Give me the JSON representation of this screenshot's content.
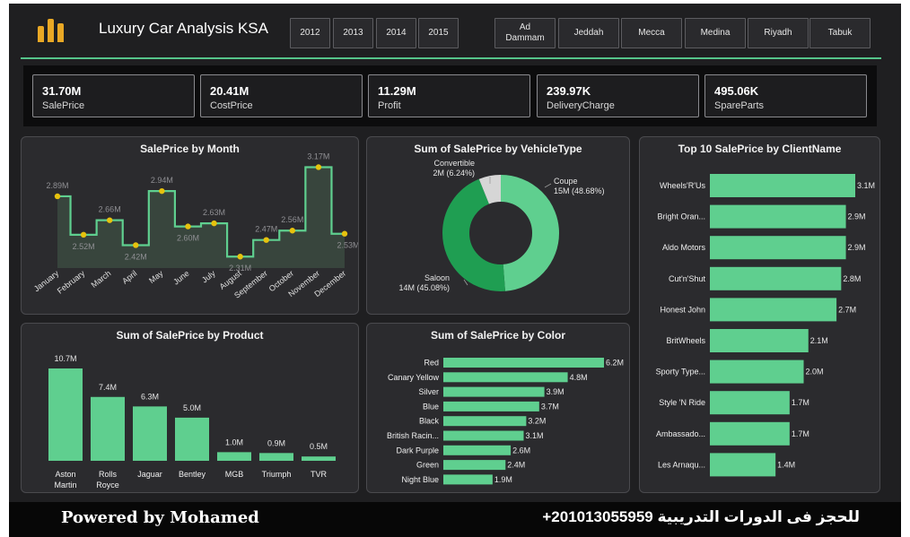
{
  "header": {
    "title": "Luxury Car Analysis KSA",
    "years": [
      "2012",
      "2013",
      "2014",
      "2015"
    ],
    "cities": [
      "Ad Dammam",
      "Jeddah",
      "Mecca",
      "Medina",
      "Riyadh",
      "Tabuk"
    ]
  },
  "kpis": [
    {
      "value": "31.70M",
      "label": "SalePrice"
    },
    {
      "value": "20.41M",
      "label": "CostPrice"
    },
    {
      "value": "11.29M",
      "label": "Profit"
    },
    {
      "value": "239.97K",
      "label": "DeliveryCharge"
    },
    {
      "value": "495.06K",
      "label": "SpareParts"
    }
  ],
  "colors": {
    "accent": "#5fcf8f",
    "accent_dark": "#1f9e52",
    "marker": "#e6c20e",
    "background": "#1f1f21",
    "panel": "#2b2b2e"
  },
  "chart_data": [
    {
      "type": "line",
      "title": "SalePrice by Month",
      "categories": [
        "January",
        "February",
        "March",
        "April",
        "May",
        "June",
        "July",
        "August",
        "September",
        "October",
        "November",
        "December"
      ],
      "values": [
        2.89,
        2.52,
        2.66,
        2.42,
        2.94,
        2.6,
        2.63,
        2.31,
        2.47,
        2.56,
        3.17,
        2.53
      ],
      "data_labels": [
        "2.89M",
        "2.52M",
        "2.66M",
        "2.42M",
        "2.94M",
        "2.60M",
        "2.63M",
        "2.31M",
        "2.47M",
        "2.56M",
        "3.17M",
        "2.53M"
      ],
      "unit": "M",
      "ylim": [
        2.2,
        3.2
      ]
    },
    {
      "type": "pie",
      "title": "Sum of SalePrice by VehicleType",
      "slices": [
        {
          "name": "Coupe",
          "value": 15,
          "label": "15M (48.68%)",
          "percent": 48.68,
          "color": "#5fcf8f"
        },
        {
          "name": "Saloon",
          "value": 14,
          "label": "14M (45.08%)",
          "percent": 45.08,
          "color": "#1f9e52"
        },
        {
          "name": "Convertible",
          "value": 2,
          "label": "2M (6.24%)",
          "percent": 6.24,
          "color": "#d6d6d6"
        }
      ]
    },
    {
      "type": "bar",
      "orientation": "horizontal",
      "title": "Top 10 SalePrice by ClientName",
      "categories": [
        "Wheels'R'Us",
        "Bright Oran...",
        "Aldo Motors",
        "Cut'n'Shut",
        "Honest John",
        "BritWheels",
        "Sporty Type...",
        "Style 'N Ride",
        "Ambassado...",
        "Les Arnaqu..."
      ],
      "values": [
        3.1,
        2.9,
        2.9,
        2.8,
        2.7,
        2.1,
        2.0,
        1.7,
        1.7,
        1.4
      ],
      "data_labels": [
        "3.1M",
        "2.9M",
        "2.9M",
        "2.8M",
        "2.7M",
        "2.1M",
        "2.0M",
        "1.7M",
        "1.7M",
        "1.4M"
      ],
      "unit": "M"
    },
    {
      "type": "bar",
      "title": "Sum of SalePrice by Product",
      "categories": [
        "Aston Martin",
        "Rolls Royce",
        "Jaguar",
        "Bentley",
        "MGB",
        "Triumph",
        "TVR"
      ],
      "values": [
        10.7,
        7.4,
        6.3,
        5.0,
        1.0,
        0.9,
        0.5
      ],
      "data_labels": [
        "10.7M",
        "7.4M",
        "6.3M",
        "5.0M",
        "1.0M",
        "0.9M",
        "0.5M"
      ],
      "unit": "M"
    },
    {
      "type": "bar",
      "orientation": "horizontal",
      "title": "Sum of SalePrice by Color",
      "categories": [
        "Red",
        "Canary Yellow",
        "Silver",
        "Blue",
        "Black",
        "British Racin...",
        "Dark Purple",
        "Green",
        "Night Blue"
      ],
      "values": [
        6.2,
        4.8,
        3.9,
        3.7,
        3.2,
        3.1,
        2.6,
        2.4,
        1.9
      ],
      "data_labels": [
        "6.2M",
        "4.8M",
        "3.9M",
        "3.7M",
        "3.2M",
        "3.1M",
        "2.6M",
        "2.4M",
        "1.9M"
      ],
      "unit": "M"
    }
  ],
  "footer": {
    "left": "Powered by Mohamed",
    "right": "للحجز فى الدورات التدريبية 201013055959+"
  }
}
